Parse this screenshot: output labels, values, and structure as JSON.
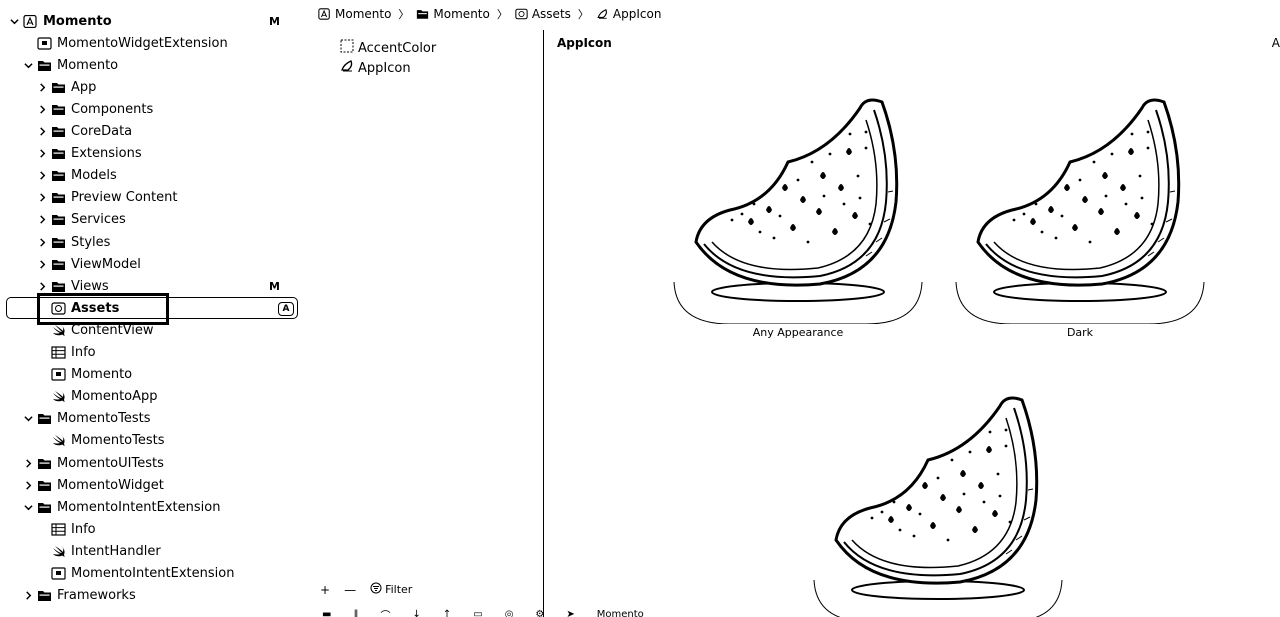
{
  "navigator": {
    "items": [
      {
        "label": "Momento",
        "level": 0,
        "chevron": "down",
        "icon": "project",
        "badge": "M",
        "bold": true
      },
      {
        "label": "MomentoWidgetExtension",
        "level": 1,
        "chevron": "none",
        "icon": "target"
      },
      {
        "label": "Momento",
        "level": 1,
        "chevron": "down",
        "icon": "folder"
      },
      {
        "label": "App",
        "level": 2,
        "chevron": "right",
        "icon": "folder"
      },
      {
        "label": "Components",
        "level": 2,
        "chevron": "right",
        "icon": "folder"
      },
      {
        "label": "CoreData",
        "level": 2,
        "chevron": "right",
        "icon": "folder"
      },
      {
        "label": "Extensions",
        "level": 2,
        "chevron": "right",
        "icon": "folder"
      },
      {
        "label": "Models",
        "level": 2,
        "chevron": "right",
        "icon": "folder"
      },
      {
        "label": "Preview Content",
        "level": 2,
        "chevron": "right",
        "icon": "folder"
      },
      {
        "label": "Services",
        "level": 2,
        "chevron": "right",
        "icon": "folder"
      },
      {
        "label": "Styles",
        "level": 2,
        "chevron": "right",
        "icon": "folder"
      },
      {
        "label": "ViewModel",
        "level": 2,
        "chevron": "right",
        "icon": "folder"
      },
      {
        "label": "Views",
        "level": 2,
        "chevron": "right",
        "icon": "folder",
        "badge": "M"
      },
      {
        "label": "Assets",
        "level": 2,
        "chevron": "none",
        "icon": "assets",
        "selected": true
      },
      {
        "label": "ContentView",
        "level": 2,
        "chevron": "none",
        "icon": "swift"
      },
      {
        "label": "Info",
        "level": 2,
        "chevron": "none",
        "icon": "plist"
      },
      {
        "label": "Momento",
        "level": 2,
        "chevron": "none",
        "icon": "entitlement"
      },
      {
        "label": "MomentoApp",
        "level": 2,
        "chevron": "none",
        "icon": "swift"
      },
      {
        "label": "MomentoTests",
        "level": 1,
        "chevron": "down",
        "icon": "folder"
      },
      {
        "label": "MomentoTests",
        "level": 2,
        "chevron": "none",
        "icon": "swift"
      },
      {
        "label": "MomentoUITests",
        "level": 1,
        "chevron": "right",
        "icon": "folder"
      },
      {
        "label": "MomentoWidget",
        "level": 1,
        "chevron": "right",
        "icon": "folder"
      },
      {
        "label": "MomentoIntentExtension",
        "level": 1,
        "chevron": "down",
        "icon": "folder"
      },
      {
        "label": "Info",
        "level": 2,
        "chevron": "none",
        "icon": "plist"
      },
      {
        "label": "IntentHandler",
        "level": 2,
        "chevron": "none",
        "icon": "swift"
      },
      {
        "label": "MomentoIntentExtension",
        "level": 2,
        "chevron": "none",
        "icon": "entitlement"
      },
      {
        "label": "Frameworks",
        "level": 1,
        "chevron": "right",
        "icon": "folder"
      }
    ],
    "selected_badge": "A"
  },
  "breadcrumb": [
    {
      "label": "Momento",
      "icon": "project-icon"
    },
    {
      "label": "Momento",
      "icon": "folder-icon"
    },
    {
      "label": "Assets",
      "icon": "assets-icon"
    },
    {
      "label": "AppIcon",
      "icon": "appicon-icon"
    }
  ],
  "asset_list": {
    "items": [
      {
        "label": "AccentColor",
        "icon": "color-set-icon"
      },
      {
        "label": "AppIcon",
        "icon": "appicon-icon"
      }
    ],
    "add_label": "+",
    "remove_label": "—",
    "filter_placeholder": "Filter"
  },
  "editor": {
    "title": "AppIcon",
    "right_mark": "A",
    "wells": [
      {
        "label": "Any Appearance",
        "icon": "watermelon-icon"
      },
      {
        "label": "Dark",
        "icon": "watermelon-icon"
      },
      {
        "label": "",
        "icon": "watermelon-icon"
      }
    ]
  },
  "debug_bar": {
    "scheme_label": "Momento"
  }
}
